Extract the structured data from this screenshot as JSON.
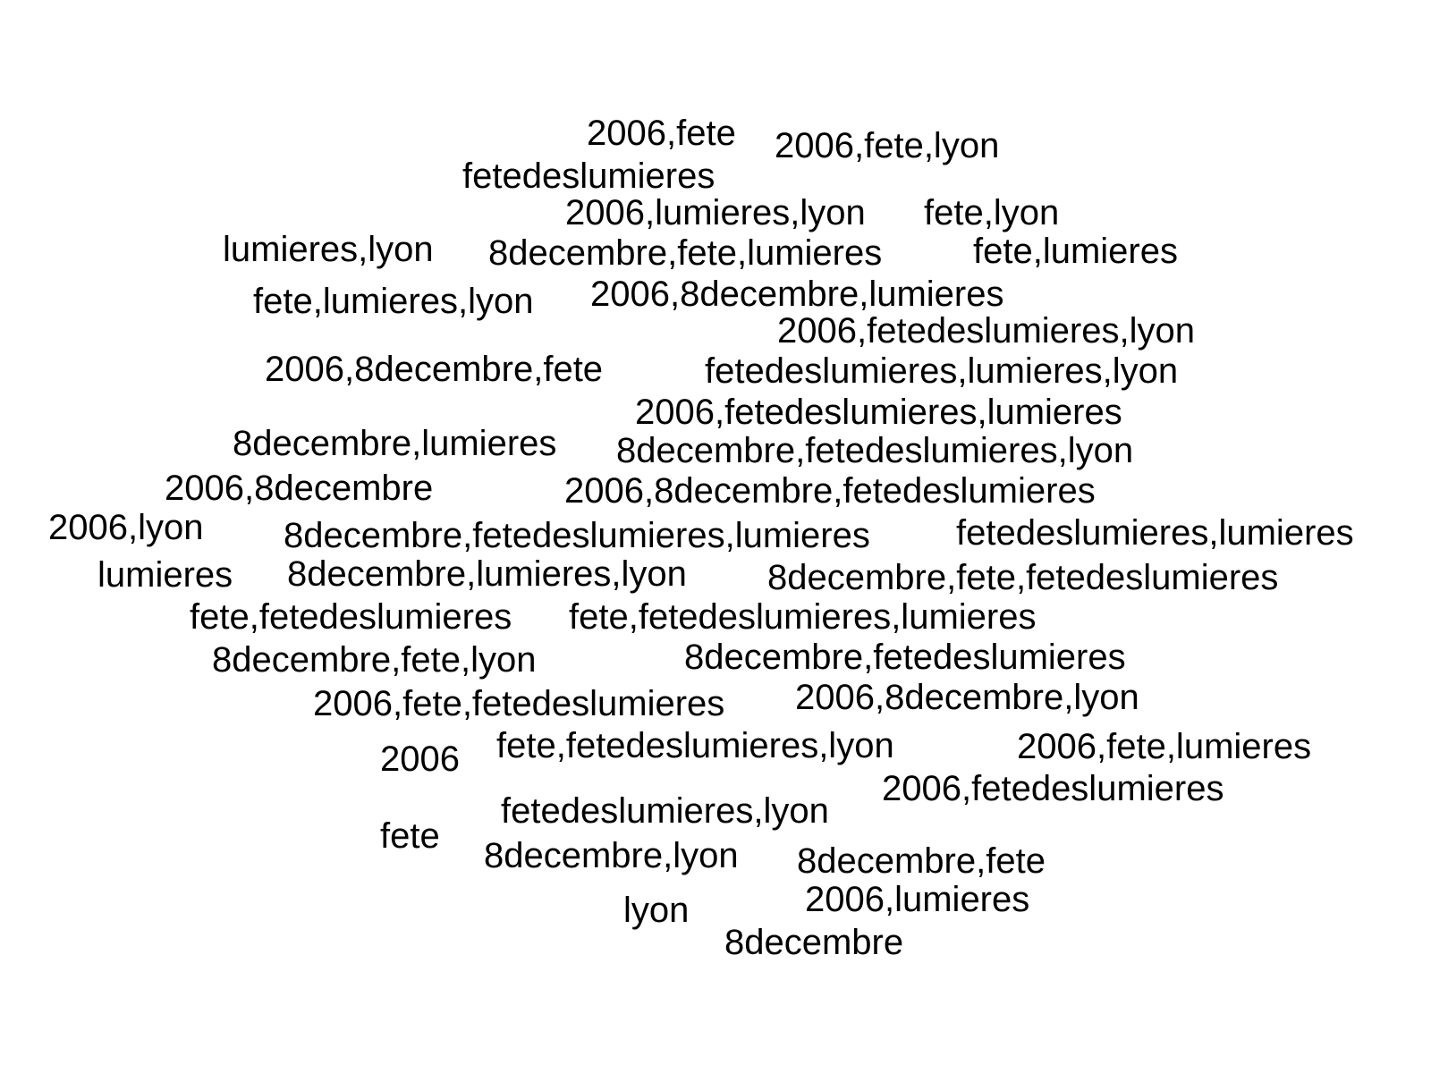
{
  "text_color": "#000000",
  "background": "#ffffff",
  "words": [
    "2006,fete",
    "2006,fete,lyon",
    "fetedeslumieres",
    "2006,lumieres,lyon",
    "fete,lyon",
    "lumieres,lyon",
    "8decembre,fete,lumieres",
    "fete,lumieres",
    "fete,lumieres,lyon",
    "2006,8decembre,lumieres",
    "2006,fetedeslumieres,lyon",
    "2006,8decembre,fete",
    "fetedeslumieres,lumieres,lyon",
    "2006,fetedeslumieres,lumieres",
    "8decembre,lumieres",
    "8decembre,fetedeslumieres,lyon",
    "2006,8decembre",
    "2006,8decembre,fetedeslumieres",
    "2006,lyon",
    "8decembre,fetedeslumieres,lumieres",
    "fetedeslumieres,lumieres",
    "lumieres",
    "8decembre,lumieres,lyon",
    "8decembre,fete,fetedeslumieres",
    "fete,fetedeslumieres",
    "fete,fetedeslumieres,lumieres",
    "8decembre,fete,lyon",
    "8decembre,fetedeslumieres",
    "2006,fete,fetedeslumieres",
    "2006,8decembre,lyon",
    "2006",
    "fete,fetedeslumieres,lyon",
    "2006,fete,lumieres",
    "2006,fetedeslumieres",
    "fetedeslumieres,lyon",
    "fete",
    "8decembre,lyon",
    "8decembre,fete",
    "lyon",
    "2006,lumieres",
    "8decembre"
  ]
}
